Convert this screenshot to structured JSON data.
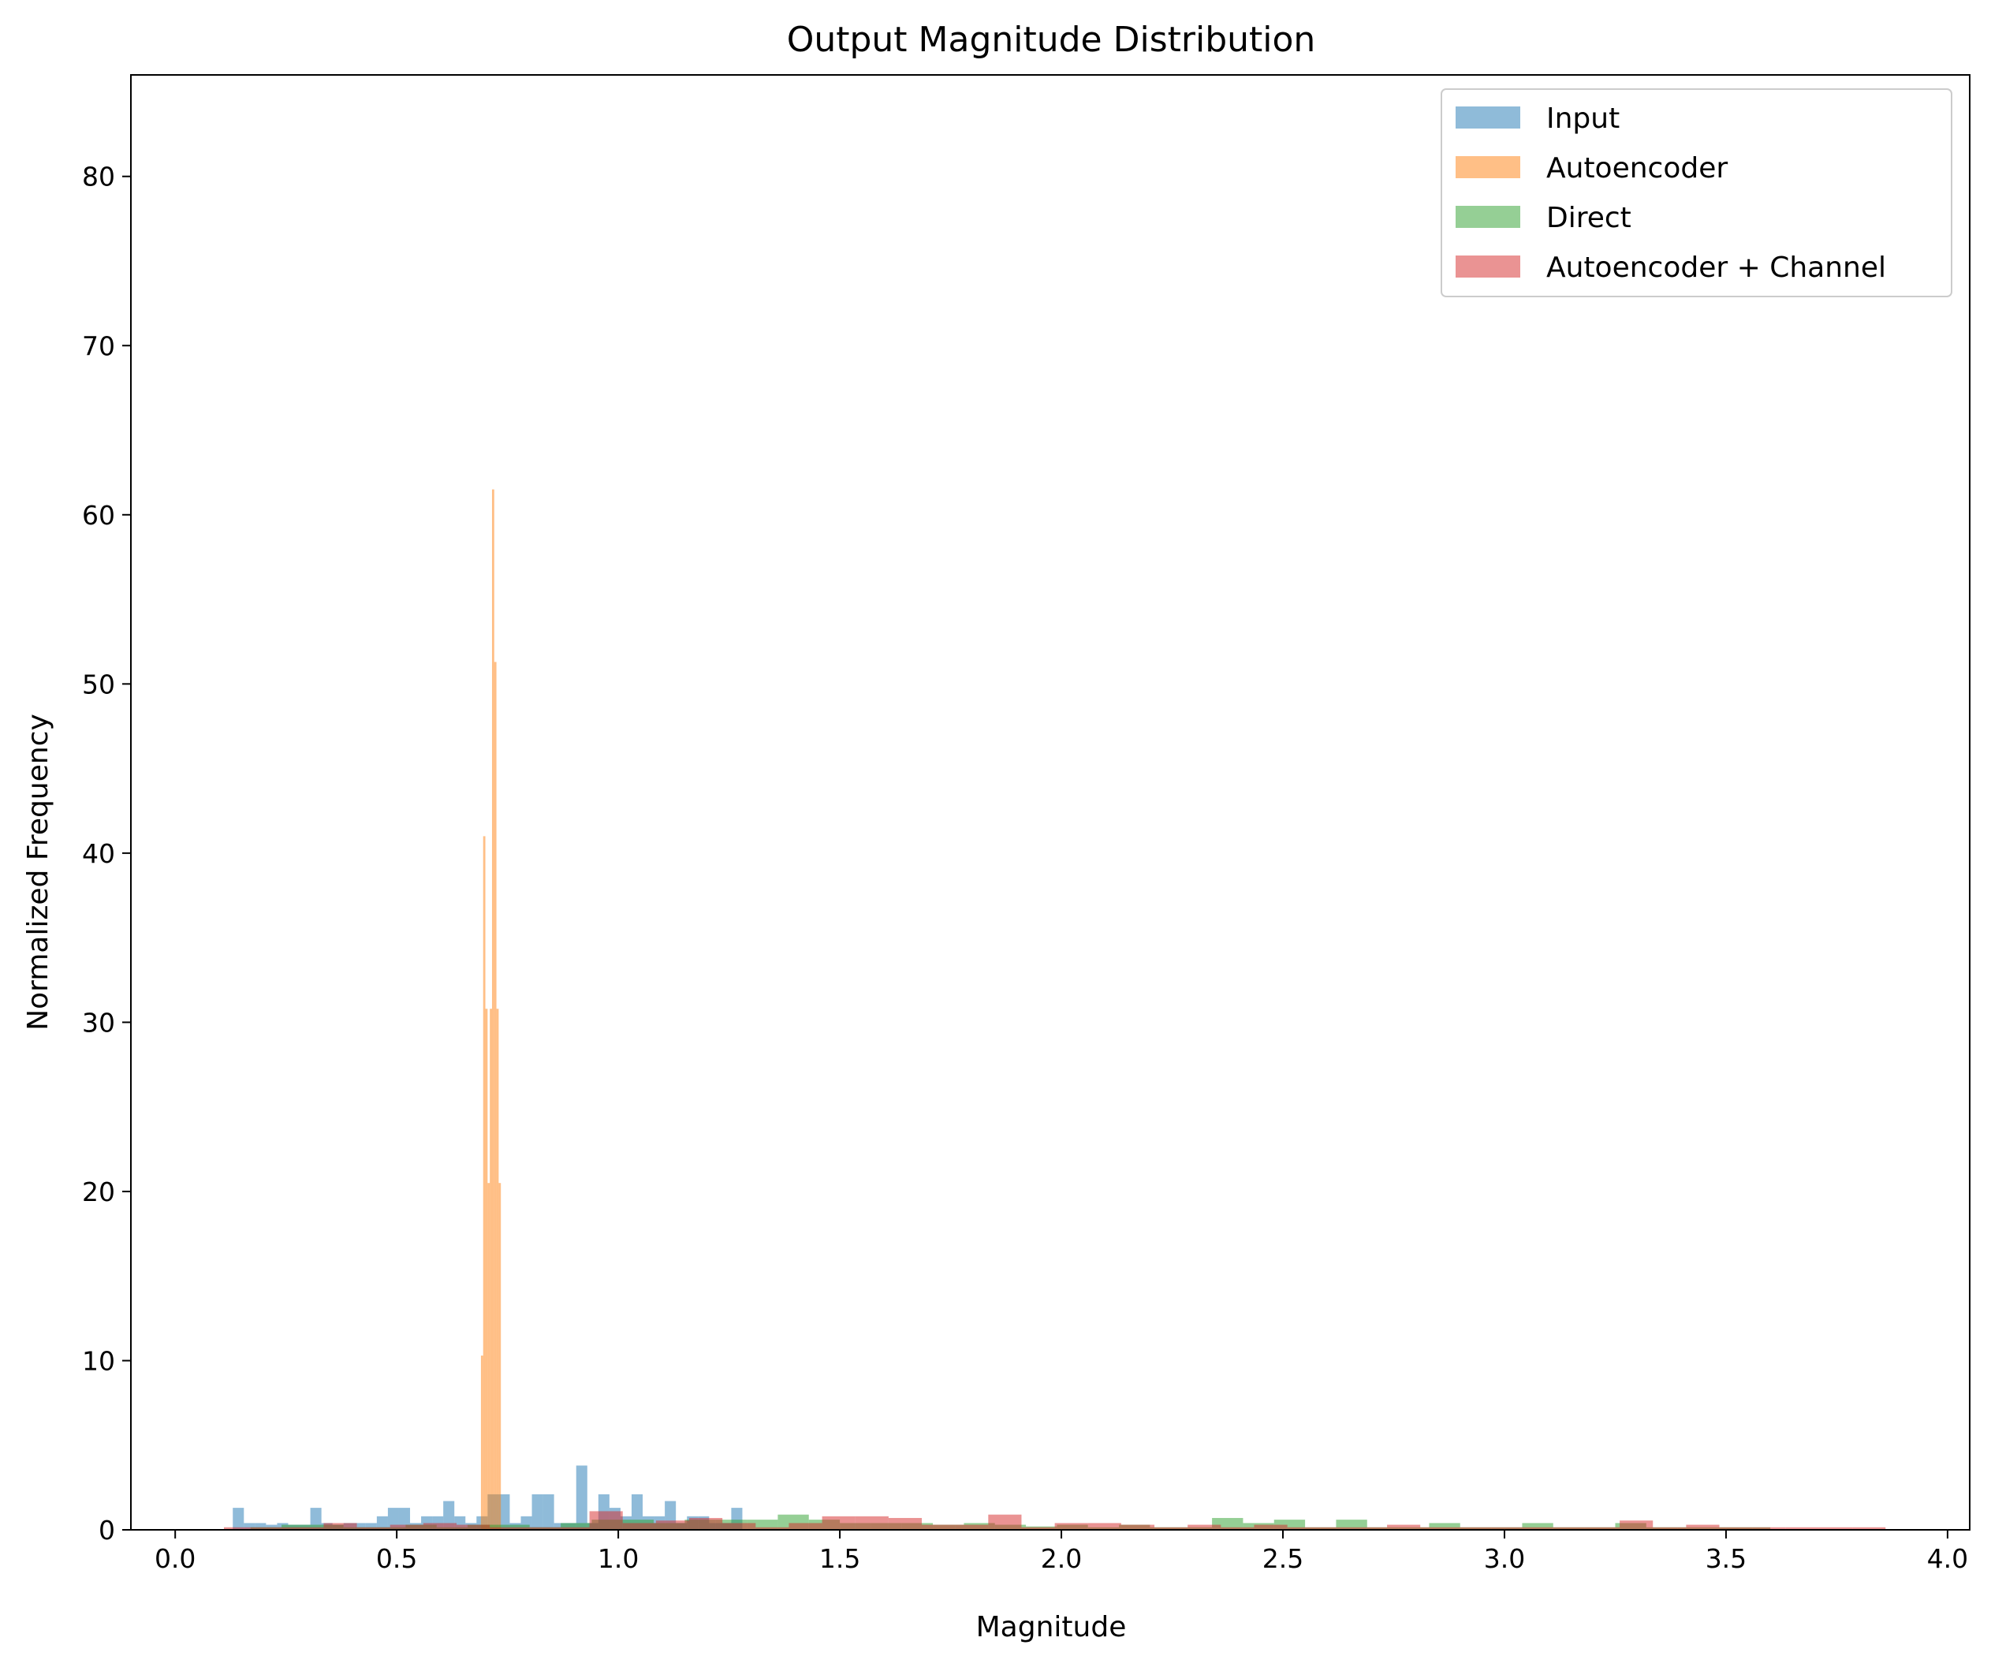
{
  "chart_data": {
    "type": "bar",
    "title": "Output Magnitude Distribution",
    "xlabel": "Magnitude",
    "ylabel": "Normalized Frequency",
    "xlim": [
      -0.1,
      4.05
    ],
    "ylim": [
      0,
      86
    ],
    "xticks": [
      "0.0",
      "0.5",
      "1.0",
      "1.5",
      "2.0",
      "2.5",
      "3.0",
      "3.5",
      "4.0"
    ],
    "yticks": [
      "0",
      "10",
      "20",
      "30",
      "40",
      "50",
      "60",
      "70",
      "80"
    ],
    "grid": false,
    "legend_position": "top-right",
    "series": [
      {
        "name": "Input",
        "color": "#1f77b4",
        "alpha": 0.5,
        "bins": [
          [
            0.13,
            0.155,
            1.3
          ],
          [
            0.155,
            0.18,
            0.4
          ],
          [
            0.18,
            0.205,
            0.4
          ],
          [
            0.205,
            0.23,
            0.3
          ],
          [
            0.23,
            0.255,
            0.4
          ],
          [
            0.255,
            0.28,
            0.3
          ],
          [
            0.28,
            0.305,
            0.3
          ],
          [
            0.305,
            0.33,
            1.3
          ],
          [
            0.33,
            0.355,
            0.4
          ],
          [
            0.355,
            0.38,
            0.3
          ],
          [
            0.38,
            0.405,
            0.4
          ],
          [
            0.405,
            0.43,
            0.4
          ],
          [
            0.43,
            0.455,
            0.4
          ],
          [
            0.455,
            0.48,
            0.8
          ],
          [
            0.48,
            0.505,
            1.3
          ],
          [
            0.505,
            0.53,
            1.3
          ],
          [
            0.53,
            0.555,
            0.4
          ],
          [
            0.555,
            0.58,
            0.8
          ],
          [
            0.58,
            0.605,
            0.8
          ],
          [
            0.605,
            0.63,
            1.7
          ],
          [
            0.63,
            0.655,
            0.8
          ],
          [
            0.655,
            0.68,
            0.4
          ],
          [
            0.68,
            0.705,
            0.8
          ],
          [
            0.705,
            0.73,
            2.1
          ],
          [
            0.73,
            0.755,
            2.1
          ],
          [
            0.755,
            0.78,
            0.4
          ],
          [
            0.78,
            0.805,
            0.8
          ],
          [
            0.805,
            0.83,
            2.1
          ],
          [
            0.83,
            0.855,
            2.1
          ],
          [
            0.855,
            0.88,
            0.4
          ],
          [
            0.88,
            0.905,
            0.4
          ],
          [
            0.905,
            0.93,
            3.8
          ],
          [
            0.93,
            0.955,
            0.4
          ],
          [
            0.955,
            0.98,
            2.1
          ],
          [
            0.98,
            1.005,
            1.3
          ],
          [
            1.005,
            1.03,
            0.8
          ],
          [
            1.03,
            1.055,
            2.1
          ],
          [
            1.055,
            1.08,
            0.8
          ],
          [
            1.08,
            1.105,
            0.8
          ],
          [
            1.105,
            1.13,
            1.7
          ],
          [
            1.13,
            1.155,
            0.4
          ],
          [
            1.155,
            1.18,
            0.8
          ],
          [
            1.18,
            1.205,
            0.8
          ],
          [
            1.205,
            1.23,
            0.4
          ],
          [
            1.23,
            1.255,
            0.4
          ],
          [
            1.255,
            1.28,
            1.3
          ]
        ]
      },
      {
        "name": "Autoencoder",
        "color": "#ff7f0e",
        "alpha": 0.5,
        "bins": [
          [
            0.69,
            0.695,
            10.3
          ],
          [
            0.695,
            0.7,
            41.0
          ],
          [
            0.7,
            0.705,
            30.8
          ],
          [
            0.705,
            0.71,
            20.5
          ],
          [
            0.71,
            0.715,
            30.8
          ],
          [
            0.715,
            0.72,
            61.5
          ],
          [
            0.72,
            0.725,
            51.3
          ],
          [
            0.725,
            0.73,
            30.8
          ],
          [
            0.73,
            0.735,
            20.5
          ]
        ]
      },
      {
        "name": "Direct",
        "color": "#2ca02c",
        "alpha": 0.5,
        "bins": [
          [
            0.17,
            0.24,
            0.15
          ],
          [
            0.24,
            0.31,
            0.3
          ],
          [
            0.31,
            0.38,
            0.3
          ],
          [
            0.38,
            0.45,
            0.15
          ],
          [
            0.45,
            0.52,
            0.15
          ],
          [
            0.52,
            0.59,
            0.3
          ],
          [
            0.59,
            0.66,
            0.15
          ],
          [
            0.66,
            0.73,
            0.3
          ],
          [
            0.73,
            0.8,
            0.3
          ],
          [
            0.8,
            0.87,
            0.15
          ],
          [
            0.87,
            0.94,
            0.4
          ],
          [
            0.94,
            1.01,
            0.6
          ],
          [
            1.01,
            1.08,
            0.6
          ],
          [
            1.08,
            1.15,
            0.4
          ],
          [
            1.15,
            1.22,
            0.6
          ],
          [
            1.22,
            1.29,
            0.6
          ],
          [
            1.29,
            1.36,
            0.6
          ],
          [
            1.36,
            1.43,
            0.9
          ],
          [
            1.43,
            1.5,
            0.6
          ],
          [
            1.5,
            1.57,
            0.4
          ],
          [
            1.57,
            1.64,
            0.4
          ],
          [
            1.64,
            1.71,
            0.4
          ],
          [
            1.71,
            1.78,
            0.3
          ],
          [
            1.78,
            1.85,
            0.4
          ],
          [
            1.85,
            1.92,
            0.3
          ],
          [
            1.92,
            1.99,
            0.2
          ],
          [
            1.99,
            2.06,
            0.3
          ],
          [
            2.06,
            2.13,
            0.15
          ],
          [
            2.13,
            2.2,
            0.3
          ],
          [
            2.2,
            2.27,
            0.15
          ],
          [
            2.27,
            2.34,
            0.15
          ],
          [
            2.34,
            2.41,
            0.7
          ],
          [
            2.41,
            2.48,
            0.4
          ],
          [
            2.48,
            2.55,
            0.6
          ],
          [
            2.55,
            2.62,
            0.15
          ],
          [
            2.62,
            2.69,
            0.6
          ],
          [
            2.69,
            2.76,
            0.15
          ],
          [
            2.76,
            2.83,
            0.15
          ],
          [
            2.83,
            2.9,
            0.4
          ],
          [
            2.9,
            2.97,
            0.15
          ],
          [
            2.97,
            3.04,
            0.15
          ],
          [
            3.04,
            3.11,
            0.4
          ],
          [
            3.11,
            3.18,
            0.15
          ],
          [
            3.18,
            3.25,
            0.15
          ],
          [
            3.25,
            3.32,
            0.4
          ],
          [
            3.32,
            3.39,
            0.15
          ],
          [
            3.39,
            3.46,
            0.15
          ],
          [
            3.46,
            3.53,
            0.15
          ],
          [
            3.53,
            3.6,
            0.15
          ]
        ]
      },
      {
        "name": "Autoencoder + Channel",
        "color": "#d62728",
        "alpha": 0.5,
        "bins": [
          [
            0.11,
            0.185,
            0.15
          ],
          [
            0.185,
            0.26,
            0.15
          ],
          [
            0.26,
            0.335,
            0.15
          ],
          [
            0.335,
            0.41,
            0.4
          ],
          [
            0.41,
            0.485,
            0.15
          ],
          [
            0.485,
            0.56,
            0.3
          ],
          [
            0.56,
            0.635,
            0.4
          ],
          [
            0.635,
            0.71,
            0.3
          ],
          [
            0.71,
            0.785,
            0.15
          ],
          [
            0.785,
            0.86,
            0.15
          ],
          [
            0.86,
            0.935,
            0.15
          ],
          [
            0.935,
            1.01,
            1.1
          ],
          [
            1.01,
            1.085,
            0.4
          ],
          [
            1.085,
            1.16,
            0.55
          ],
          [
            1.16,
            1.235,
            0.7
          ],
          [
            1.235,
            1.31,
            0.4
          ],
          [
            1.31,
            1.385,
            0.15
          ],
          [
            1.385,
            1.46,
            0.4
          ],
          [
            1.46,
            1.535,
            0.8
          ],
          [
            1.535,
            1.61,
            0.8
          ],
          [
            1.61,
            1.685,
            0.7
          ],
          [
            1.685,
            1.76,
            0.3
          ],
          [
            1.76,
            1.835,
            0.3
          ],
          [
            1.835,
            1.91,
            0.9
          ],
          [
            1.91,
            1.985,
            0.15
          ],
          [
            1.985,
            2.06,
            0.4
          ],
          [
            2.06,
            2.135,
            0.4
          ],
          [
            2.135,
            2.21,
            0.3
          ],
          [
            2.21,
            2.285,
            0.15
          ],
          [
            2.285,
            2.36,
            0.3
          ],
          [
            2.36,
            2.435,
            0.15
          ],
          [
            2.435,
            2.51,
            0.3
          ],
          [
            2.51,
            2.585,
            0.15
          ],
          [
            2.585,
            2.66,
            0.15
          ],
          [
            2.66,
            2.735,
            0.15
          ],
          [
            2.735,
            2.81,
            0.3
          ],
          [
            2.81,
            2.885,
            0.15
          ],
          [
            2.885,
            2.96,
            0.15
          ],
          [
            2.96,
            3.035,
            0.15
          ],
          [
            3.035,
            3.11,
            0.15
          ],
          [
            3.11,
            3.185,
            0.15
          ],
          [
            3.185,
            3.26,
            0.15
          ],
          [
            3.26,
            3.335,
            0.55
          ],
          [
            3.335,
            3.41,
            0.15
          ],
          [
            3.41,
            3.485,
            0.3
          ],
          [
            3.485,
            3.56,
            0.15
          ],
          [
            3.56,
            3.635,
            0.15
          ],
          [
            3.635,
            3.71,
            0.15
          ],
          [
            3.71,
            3.785,
            0.15
          ],
          [
            3.785,
            3.86,
            0.15
          ]
        ]
      }
    ]
  }
}
